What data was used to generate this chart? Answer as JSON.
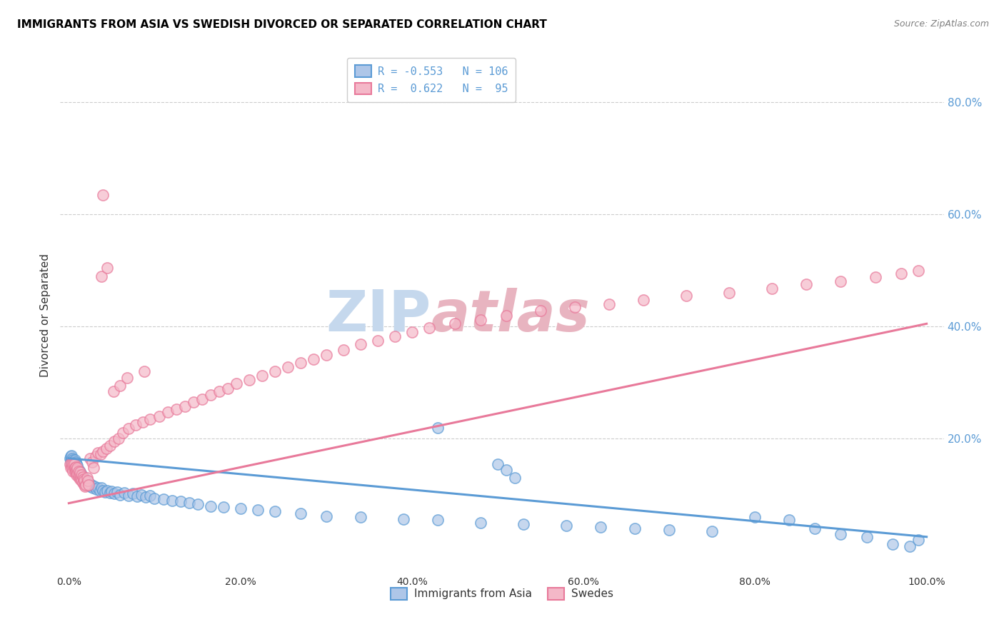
{
  "title": "IMMIGRANTS FROM ASIA VS SWEDISH DIVORCED OR SEPARATED CORRELATION CHART",
  "source": "Source: ZipAtlas.com",
  "ylabel": "Divorced or Separated",
  "ytick_vals": [
    0.2,
    0.4,
    0.6,
    0.8
  ],
  "ytick_labels": [
    "20.0%",
    "40.0%",
    "60.0%",
    "80.0%"
  ],
  "xlim": [
    -0.01,
    1.02
  ],
  "ylim": [
    -0.04,
    0.88
  ],
  "legend_line1": "R = -0.553   N = 106",
  "legend_line2": "R =  0.622   N =  95",
  "legend_labels_bottom": [
    "Immigrants from Asia",
    "Swedes"
  ],
  "watermark": "ZIPatlas",
  "blue_color": "#5b9bd5",
  "pink_color": "#e8799a",
  "blue_face": "#aec6e8",
  "pink_face": "#f4b8c8",
  "grid_color": "#cccccc",
  "watermark_blue": "#c5d8ed",
  "watermark_pink": "#e8b4c0",
  "background_color": "#ffffff",
  "blue_line_x": [
    0.0,
    1.0
  ],
  "blue_line_y": [
    0.165,
    0.025
  ],
  "pink_line_x": [
    0.0,
    1.0
  ],
  "pink_line_y": [
    0.085,
    0.405
  ],
  "blue_x": [
    0.001,
    0.002,
    0.002,
    0.003,
    0.003,
    0.003,
    0.004,
    0.004,
    0.005,
    0.005,
    0.005,
    0.006,
    0.006,
    0.006,
    0.007,
    0.007,
    0.007,
    0.008,
    0.008,
    0.008,
    0.009,
    0.009,
    0.009,
    0.01,
    0.01,
    0.01,
    0.011,
    0.011,
    0.012,
    0.012,
    0.013,
    0.013,
    0.014,
    0.014,
    0.015,
    0.015,
    0.016,
    0.016,
    0.017,
    0.017,
    0.018,
    0.018,
    0.019,
    0.02,
    0.021,
    0.022,
    0.023,
    0.024,
    0.025,
    0.026,
    0.028,
    0.03,
    0.032,
    0.034,
    0.036,
    0.038,
    0.04,
    0.042,
    0.045,
    0.048,
    0.05,
    0.053,
    0.056,
    0.06,
    0.065,
    0.07,
    0.075,
    0.08,
    0.085,
    0.09,
    0.095,
    0.1,
    0.11,
    0.12,
    0.13,
    0.14,
    0.15,
    0.165,
    0.18,
    0.2,
    0.22,
    0.24,
    0.27,
    0.3,
    0.34,
    0.39,
    0.43,
    0.48,
    0.53,
    0.58,
    0.62,
    0.66,
    0.7,
    0.75,
    0.8,
    0.84,
    0.87,
    0.9,
    0.93,
    0.96,
    0.98,
    0.99,
    0.5,
    0.51,
    0.52,
    0.43
  ],
  "blue_y": [
    0.165,
    0.16,
    0.168,
    0.155,
    0.162,
    0.17,
    0.158,
    0.165,
    0.155,
    0.162,
    0.158,
    0.152,
    0.16,
    0.155,
    0.148,
    0.155,
    0.162,
    0.15,
    0.158,
    0.145,
    0.148,
    0.155,
    0.14,
    0.148,
    0.143,
    0.152,
    0.145,
    0.138,
    0.143,
    0.135,
    0.14,
    0.133,
    0.138,
    0.13,
    0.135,
    0.128,
    0.133,
    0.125,
    0.13,
    0.122,
    0.128,
    0.12,
    0.125,
    0.122,
    0.118,
    0.122,
    0.116,
    0.12,
    0.115,
    0.118,
    0.112,
    0.115,
    0.11,
    0.113,
    0.108,
    0.112,
    0.108,
    0.105,
    0.108,
    0.103,
    0.106,
    0.102,
    0.105,
    0.1,
    0.103,
    0.098,
    0.102,
    0.097,
    0.1,
    0.096,
    0.099,
    0.094,
    0.092,
    0.09,
    0.088,
    0.086,
    0.083,
    0.08,
    0.078,
    0.076,
    0.073,
    0.07,
    0.067,
    0.062,
    0.06,
    0.057,
    0.055,
    0.05,
    0.048,
    0.045,
    0.043,
    0.04,
    0.038,
    0.035,
    0.06,
    0.055,
    0.04,
    0.03,
    0.025,
    0.012,
    0.008,
    0.02,
    0.155,
    0.145,
    0.13,
    0.22
  ],
  "pink_x": [
    0.001,
    0.002,
    0.003,
    0.004,
    0.005,
    0.005,
    0.006,
    0.006,
    0.007,
    0.007,
    0.008,
    0.008,
    0.009,
    0.009,
    0.01,
    0.01,
    0.011,
    0.011,
    0.012,
    0.013,
    0.013,
    0.014,
    0.015,
    0.015,
    0.016,
    0.016,
    0.017,
    0.018,
    0.018,
    0.019,
    0.02,
    0.021,
    0.022,
    0.023,
    0.025,
    0.027,
    0.029,
    0.031,
    0.034,
    0.037,
    0.04,
    0.044,
    0.048,
    0.053,
    0.058,
    0.063,
    0.07,
    0.078,
    0.086,
    0.095,
    0.105,
    0.115,
    0.125,
    0.135,
    0.145,
    0.155,
    0.165,
    0.175,
    0.185,
    0.195,
    0.21,
    0.225,
    0.24,
    0.255,
    0.27,
    0.285,
    0.3,
    0.32,
    0.34,
    0.36,
    0.38,
    0.4,
    0.42,
    0.45,
    0.48,
    0.51,
    0.55,
    0.59,
    0.63,
    0.67,
    0.72,
    0.77,
    0.82,
    0.86,
    0.9,
    0.94,
    0.97,
    0.99,
    0.038,
    0.045,
    0.052,
    0.06,
    0.068,
    0.088,
    0.04
  ],
  "pink_y": [
    0.155,
    0.148,
    0.155,
    0.148,
    0.155,
    0.142,
    0.148,
    0.155,
    0.14,
    0.148,
    0.142,
    0.15,
    0.135,
    0.145,
    0.138,
    0.148,
    0.132,
    0.142,
    0.135,
    0.128,
    0.14,
    0.13,
    0.135,
    0.125,
    0.132,
    0.122,
    0.128,
    0.118,
    0.125,
    0.115,
    0.118,
    0.13,
    0.125,
    0.118,
    0.165,
    0.158,
    0.148,
    0.168,
    0.175,
    0.172,
    0.178,
    0.182,
    0.188,
    0.195,
    0.2,
    0.21,
    0.218,
    0.225,
    0.23,
    0.235,
    0.24,
    0.248,
    0.252,
    0.258,
    0.265,
    0.27,
    0.278,
    0.285,
    0.29,
    0.298,
    0.305,
    0.312,
    0.32,
    0.328,
    0.335,
    0.342,
    0.35,
    0.358,
    0.368,
    0.375,
    0.382,
    0.39,
    0.398,
    0.405,
    0.412,
    0.42,
    0.428,
    0.435,
    0.44,
    0.448,
    0.455,
    0.46,
    0.468,
    0.475,
    0.48,
    0.488,
    0.495,
    0.5,
    0.49,
    0.505,
    0.285,
    0.295,
    0.308,
    0.32,
    0.635
  ]
}
